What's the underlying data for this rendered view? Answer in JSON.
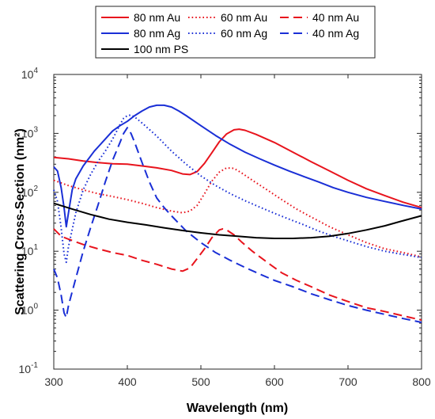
{
  "chart_data": {
    "type": "line",
    "xlabel": "Wavelength (nm)",
    "ylabel": "Scattering Cross-Section (nm²)",
    "xlim": [
      300,
      800
    ],
    "ylim": [
      0.1,
      10000
    ],
    "y_scale": "log",
    "x_ticks": [
      "300",
      "400",
      "500",
      "600",
      "700",
      "800"
    ],
    "y_ticks": [
      {
        "value": 0.1,
        "base": "10",
        "exp": "-1"
      },
      {
        "value": 1,
        "base": "10",
        "exp": "0"
      },
      {
        "value": 10,
        "base": "10",
        "exp": "1"
      },
      {
        "value": 100,
        "base": "10",
        "exp": "2"
      },
      {
        "value": 1000,
        "base": "10",
        "exp": "3"
      },
      {
        "value": 10000,
        "base": "10",
        "exp": "4"
      }
    ],
    "grid": false,
    "legend_position": "top-left",
    "series": [
      {
        "name": "80 nm Au",
        "color": "#e8141d",
        "dash": "solid",
        "points": [
          [
            300,
            390
          ],
          [
            320,
            370
          ],
          [
            340,
            340
          ],
          [
            360,
            320
          ],
          [
            380,
            305
          ],
          [
            400,
            300
          ],
          [
            420,
            280
          ],
          [
            440,
            260
          ],
          [
            460,
            235
          ],
          [
            475,
            205
          ],
          [
            485,
            200
          ],
          [
            495,
            225
          ],
          [
            505,
            310
          ],
          [
            515,
            470
          ],
          [
            525,
            720
          ],
          [
            535,
            980
          ],
          [
            545,
            1150
          ],
          [
            552,
            1180
          ],
          [
            560,
            1130
          ],
          [
            575,
            960
          ],
          [
            600,
            700
          ],
          [
            625,
            480
          ],
          [
            650,
            330
          ],
          [
            675,
            230
          ],
          [
            700,
            160
          ],
          [
            725,
            115
          ],
          [
            750,
            88
          ],
          [
            775,
            68
          ],
          [
            800,
            55
          ]
        ]
      },
      {
        "name": "60 nm Au",
        "color": "#e8141d",
        "dash": "dotted",
        "points": [
          [
            300,
            160
          ],
          [
            320,
            130
          ],
          [
            340,
            110
          ],
          [
            360,
            95
          ],
          [
            380,
            85
          ],
          [
            400,
            75
          ],
          [
            420,
            65
          ],
          [
            440,
            55
          ],
          [
            460,
            48
          ],
          [
            475,
            45
          ],
          [
            485,
            48
          ],
          [
            495,
            60
          ],
          [
            505,
            95
          ],
          [
            515,
            155
          ],
          [
            525,
            220
          ],
          [
            535,
            260
          ],
          [
            545,
            255
          ],
          [
            555,
            215
          ],
          [
            570,
            160
          ],
          [
            590,
            110
          ],
          [
            610,
            75
          ],
          [
            630,
            52
          ],
          [
            650,
            38
          ],
          [
            675,
            26
          ],
          [
            700,
            19
          ],
          [
            725,
            14
          ],
          [
            750,
            11
          ],
          [
            775,
            9.5
          ],
          [
            800,
            8
          ]
        ]
      },
      {
        "name": "40 nm Au",
        "color": "#e8141d",
        "dash": "dashed",
        "points": [
          [
            300,
            24
          ],
          [
            310,
            18
          ],
          [
            320,
            16
          ],
          [
            340,
            13
          ],
          [
            360,
            11
          ],
          [
            380,
            9.5
          ],
          [
            400,
            8.5
          ],
          [
            420,
            7
          ],
          [
            440,
            6
          ],
          [
            460,
            5
          ],
          [
            475,
            4.6
          ],
          [
            485,
            5.2
          ],
          [
            495,
            7.5
          ],
          [
            505,
            11
          ],
          [
            515,
            17
          ],
          [
            525,
            23
          ],
          [
            530,
            24
          ],
          [
            535,
            23
          ],
          [
            545,
            19
          ],
          [
            555,
            14.5
          ],
          [
            570,
            10
          ],
          [
            590,
            6.5
          ],
          [
            610,
            4.3
          ],
          [
            630,
            3.2
          ],
          [
            650,
            2.5
          ],
          [
            675,
            1.8
          ],
          [
            700,
            1.4
          ],
          [
            725,
            1.1
          ],
          [
            750,
            0.95
          ],
          [
            775,
            0.8
          ],
          [
            800,
            0.68
          ]
        ]
      },
      {
        "name": "80 nm Ag",
        "color": "#1a2fd6",
        "dash": "solid",
        "points": [
          [
            300,
            270
          ],
          [
            305,
            230
          ],
          [
            310,
            120
          ],
          [
            314,
            55
          ],
          [
            317,
            26
          ],
          [
            320,
            45
          ],
          [
            325,
            110
          ],
          [
            330,
            170
          ],
          [
            340,
            280
          ],
          [
            355,
            500
          ],
          [
            370,
            800
          ],
          [
            380,
            1100
          ],
          [
            390,
            1350
          ],
          [
            400,
            1600
          ],
          [
            410,
            2000
          ],
          [
            420,
            2400
          ],
          [
            430,
            2800
          ],
          [
            440,
            3000
          ],
          [
            450,
            3000
          ],
          [
            460,
            2800
          ],
          [
            470,
            2400
          ],
          [
            480,
            2000
          ],
          [
            500,
            1350
          ],
          [
            520,
            920
          ],
          [
            540,
            650
          ],
          [
            560,
            480
          ],
          [
            580,
            370
          ],
          [
            600,
            290
          ],
          [
            620,
            230
          ],
          [
            640,
            185
          ],
          [
            660,
            150
          ],
          [
            680,
            120
          ],
          [
            700,
            100
          ],
          [
            725,
            82
          ],
          [
            750,
            70
          ],
          [
            775,
            60
          ],
          [
            800,
            52
          ]
        ]
      },
      {
        "name": "60 nm Ag",
        "color": "#1a2fd6",
        "dash": "dotted",
        "points": [
          [
            300,
            110
          ],
          [
            305,
            70
          ],
          [
            310,
            25
          ],
          [
            314,
            9
          ],
          [
            317,
            6.5
          ],
          [
            320,
            12
          ],
          [
            330,
            45
          ],
          [
            340,
            110
          ],
          [
            350,
            200
          ],
          [
            360,
            330
          ],
          [
            370,
            500
          ],
          [
            380,
            800
          ],
          [
            390,
            1400
          ],
          [
            395,
            1800
          ],
          [
            400,
            2000
          ],
          [
            405,
            2050
          ],
          [
            410,
            1900
          ],
          [
            420,
            1500
          ],
          [
            440,
            900
          ],
          [
            460,
            500
          ],
          [
            480,
            300
          ],
          [
            500,
            190
          ],
          [
            520,
            130
          ],
          [
            540,
            95
          ],
          [
            560,
            72
          ],
          [
            580,
            56
          ],
          [
            600,
            44
          ],
          [
            620,
            35
          ],
          [
            640,
            28
          ],
          [
            660,
            22
          ],
          [
            680,
            18
          ],
          [
            700,
            15
          ],
          [
            725,
            12
          ],
          [
            750,
            10
          ],
          [
            775,
            8.8
          ],
          [
            800,
            7.8
          ]
        ]
      },
      {
        "name": "40 nm Ag",
        "color": "#1a2fd6",
        "dash": "dashed",
        "points": [
          [
            300,
            5
          ],
          [
            305,
            3.5
          ],
          [
            310,
            1.8
          ],
          [
            314,
            0.9
          ],
          [
            317,
            0.75
          ],
          [
            320,
            1.2
          ],
          [
            330,
            3.5
          ],
          [
            340,
            10
          ],
          [
            350,
            25
          ],
          [
            360,
            60
          ],
          [
            370,
            150
          ],
          [
            380,
            350
          ],
          [
            390,
            700
          ],
          [
            395,
            1000
          ],
          [
            400,
            1250
          ],
          [
            405,
            1000
          ],
          [
            410,
            700
          ],
          [
            420,
            320
          ],
          [
            430,
            150
          ],
          [
            440,
            80
          ],
          [
            450,
            55
          ],
          [
            460,
            40
          ],
          [
            480,
            22
          ],
          [
            500,
            14
          ],
          [
            520,
            9.5
          ],
          [
            540,
            7
          ],
          [
            560,
            5.3
          ],
          [
            580,
            4.1
          ],
          [
            600,
            3.2
          ],
          [
            625,
            2.5
          ],
          [
            650,
            1.9
          ],
          [
            675,
            1.5
          ],
          [
            700,
            1.2
          ],
          [
            725,
            1.0
          ],
          [
            750,
            0.85
          ],
          [
            775,
            0.72
          ],
          [
            800,
            0.62
          ]
        ]
      },
      {
        "name": "100 nm PS",
        "color": "#000000",
        "dash": "solid",
        "points": [
          [
            300,
            65
          ],
          [
            325,
            52
          ],
          [
            350,
            42
          ],
          [
            375,
            35
          ],
          [
            400,
            31
          ],
          [
            425,
            28
          ],
          [
            450,
            25
          ],
          [
            475,
            22.5
          ],
          [
            500,
            20.5
          ],
          [
            525,
            19
          ],
          [
            550,
            18
          ],
          [
            575,
            17
          ],
          [
            600,
            16.5
          ],
          [
            625,
            16.5
          ],
          [
            650,
            17
          ],
          [
            675,
            18
          ],
          [
            700,
            20
          ],
          [
            725,
            23
          ],
          [
            750,
            27
          ],
          [
            775,
            33
          ],
          [
            800,
            40
          ]
        ]
      }
    ]
  }
}
